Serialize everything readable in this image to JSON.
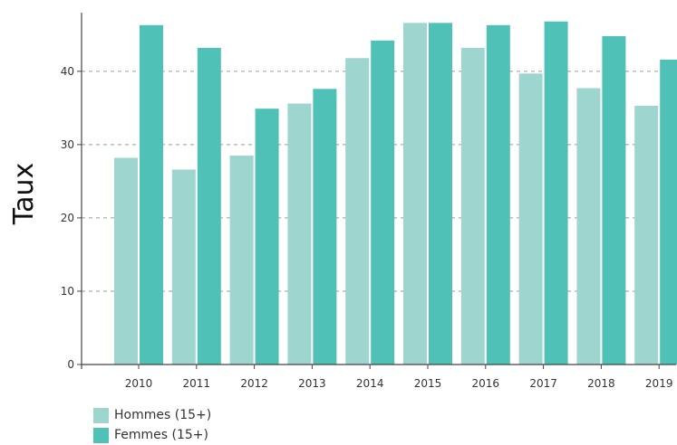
{
  "chart_data": {
    "type": "bar",
    "ylabel": "Taux",
    "xlabel": "",
    "categories": [
      "2010",
      "2011",
      "2012",
      "2013",
      "2014",
      "2015",
      "2016",
      "2017",
      "2018",
      "2019"
    ],
    "series": [
      {
        "name": "Hommes (15+)",
        "color": "#9ed6cf",
        "values": [
          28.2,
          26.6,
          28.5,
          35.6,
          41.8,
          46.6,
          43.2,
          39.7,
          37.7,
          35.3
        ]
      },
      {
        "name": "Femmes (15+)",
        "color": "#4fc1b7",
        "values": [
          46.3,
          43.2,
          34.9,
          37.6,
          44.2,
          46.6,
          46.3,
          46.8,
          44.8,
          41.6
        ]
      }
    ],
    "ylim": [
      0,
      48
    ],
    "yticks": [
      0,
      10,
      20,
      30,
      40
    ],
    "grid": true,
    "legend_position": "bottom-left"
  }
}
